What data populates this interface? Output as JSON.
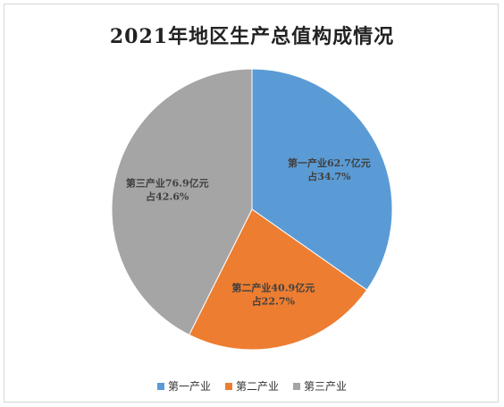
{
  "chart_data": {
    "type": "pie",
    "title": "2021年地区生产总值构成情况",
    "slices": [
      {
        "name": "第一产业",
        "label_line1": "第一产业62.7亿元",
        "label_line2": "占34.7%",
        "value": 62.7,
        "percent": 34.7,
        "color": "#5b9bd5"
      },
      {
        "name": "第二产业",
        "label_line1": "第二产业40.9亿元",
        "label_line2": "占22.7%",
        "value": 40.9,
        "percent": 22.7,
        "color": "#ed7d31"
      },
      {
        "name": "第三产业",
        "label_line1": "第三产业76.9亿元",
        "label_line2": "占42.6%",
        "value": 76.9,
        "percent": 42.6,
        "color": "#a5a5a5"
      }
    ],
    "legend": [
      "第一产业",
      "第二产业",
      "第三产业"
    ],
    "legend_position": "bottom"
  }
}
